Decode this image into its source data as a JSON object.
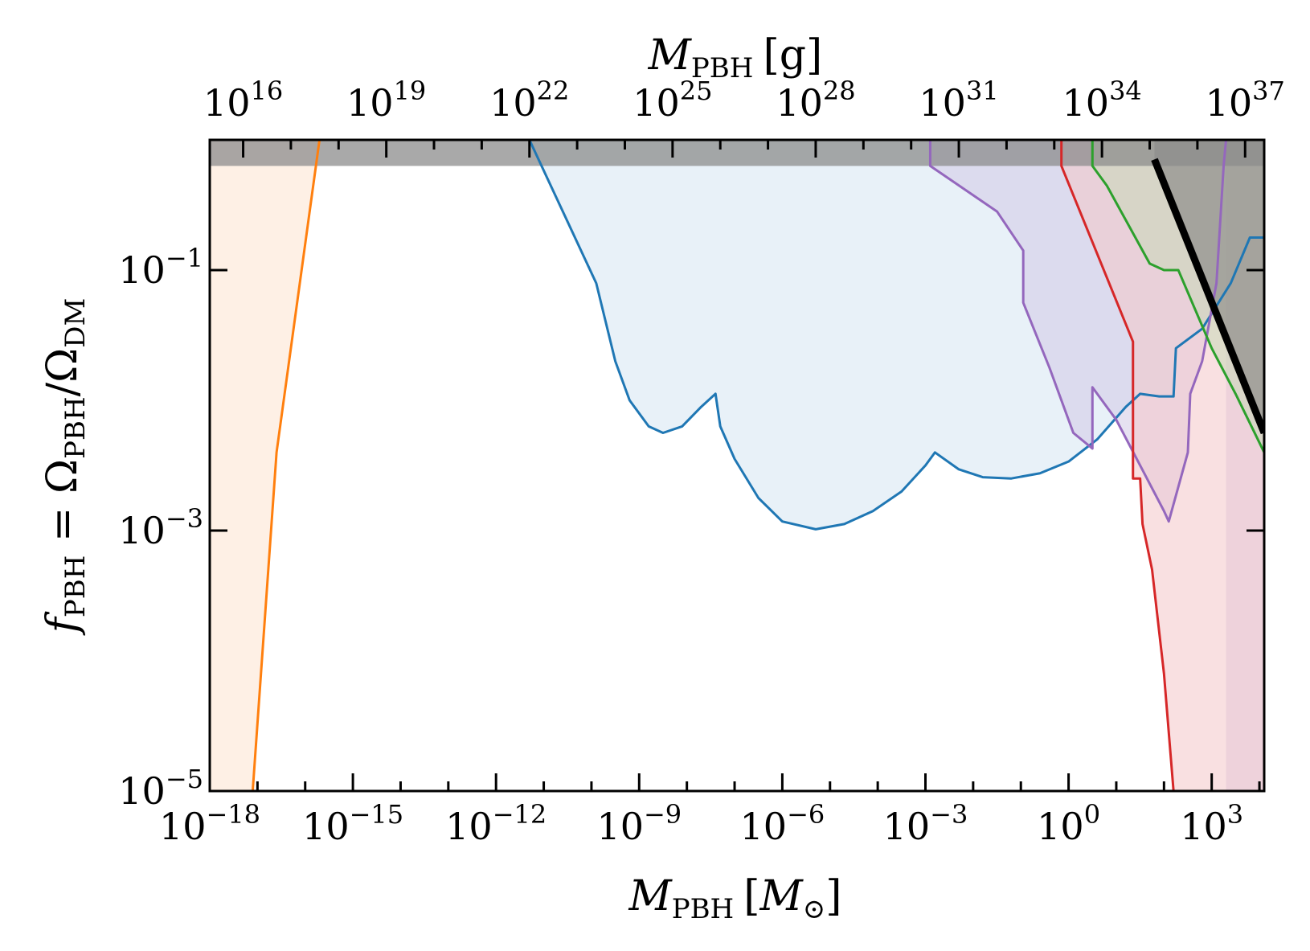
{
  "chart_data": {
    "type": "area",
    "x_scale": "log",
    "y_scale": "log",
    "xlim_exp": [
      -18,
      4.1
    ],
    "ylim_exp": [
      -5,
      0
    ],
    "top_axis_offset_exp": 33.3,
    "xlabel": {
      "main": "M",
      "sub": "PBH",
      "unit_open": "[",
      "unit": "M",
      "unit_sub": "⊙",
      "unit_close": "]"
    },
    "top_xlabel": {
      "main": "M",
      "sub": "PBH",
      "unit": "[g]"
    },
    "ylabel": {
      "f": "f",
      "f_sub": "PBH",
      "eq": " = Ω",
      "num_sub": "PBH",
      "slash": "/Ω",
      "den_sub": "DM"
    },
    "x_ticks": [
      {
        "base": "10",
        "exp": "−18",
        "value": -18
      },
      {
        "base": "10",
        "exp": "−15",
        "value": -15
      },
      {
        "base": "10",
        "exp": "−12",
        "value": -12
      },
      {
        "base": "10",
        "exp": "−9",
        "value": -9
      },
      {
        "base": "10",
        "exp": "−6",
        "value": -6
      },
      {
        "base": "10",
        "exp": "−3",
        "value": -3
      },
      {
        "base": "10",
        "exp": "0",
        "value": 0
      },
      {
        "base": "10",
        "exp": "3",
        "value": 3
      }
    ],
    "top_ticks": [
      {
        "base": "10",
        "exp": "16",
        "value": 16
      },
      {
        "base": "10",
        "exp": "19",
        "value": 19
      },
      {
        "base": "10",
        "exp": "22",
        "value": 22
      },
      {
        "base": "10",
        "exp": "25",
        "value": 25
      },
      {
        "base": "10",
        "exp": "28",
        "value": 28
      },
      {
        "base": "10",
        "exp": "31",
        "value": 31
      },
      {
        "base": "10",
        "exp": "34",
        "value": 34
      },
      {
        "base": "10",
        "exp": "37",
        "value": 37
      }
    ],
    "y_ticks": [
      {
        "base": "10",
        "exp": "−1",
        "value": -1
      },
      {
        "base": "10",
        "exp": "−3",
        "value": -3
      },
      {
        "base": "10",
        "exp": "−5",
        "value": -5
      }
    ],
    "grey_band": {
      "y_from_exp": -0.2,
      "y_to_exp": 0,
      "color": "#8c8c8c",
      "opacity": 0.75
    },
    "series": [
      {
        "color": "#ff7f0e",
        "fill": "#fde3cf",
        "side": "left",
        "points": [
          [
            -17.1,
            -5
          ],
          [
            -16.6,
            -2.4
          ],
          [
            -15.7,
            0
          ]
        ]
      },
      {
        "color": "#1f77b4",
        "fill": "#d6e5f2",
        "side": "above",
        "points": [
          [
            -11.3,
            0
          ],
          [
            -9.9,
            -1.1
          ],
          [
            -9.5,
            -1.7
          ],
          [
            -9.2,
            -2.0
          ],
          [
            -8.8,
            -2.2
          ],
          [
            -8.5,
            -2.25
          ],
          [
            -8.1,
            -2.2
          ],
          [
            -7.7,
            -2.05
          ],
          [
            -7.4,
            -1.95
          ],
          [
            -7.3,
            -2.2
          ],
          [
            -7.0,
            -2.45
          ],
          [
            -6.5,
            -2.75
          ],
          [
            -6.0,
            -2.93
          ],
          [
            -5.3,
            -2.99
          ],
          [
            -4.7,
            -2.95
          ],
          [
            -4.1,
            -2.85
          ],
          [
            -3.5,
            -2.7
          ],
          [
            -3.0,
            -2.5
          ],
          [
            -2.8,
            -2.4
          ],
          [
            -2.3,
            -2.53
          ],
          [
            -1.8,
            -2.59
          ],
          [
            -1.2,
            -2.6
          ],
          [
            -0.6,
            -2.56
          ],
          [
            0.0,
            -2.47
          ],
          [
            0.6,
            -2.3
          ],
          [
            1.2,
            -2.05
          ],
          [
            1.5,
            -1.95
          ],
          [
            1.9,
            -1.97
          ],
          [
            2.2,
            -1.97
          ],
          [
            2.25,
            -1.6
          ],
          [
            2.8,
            -1.45
          ],
          [
            3.4,
            -1.1
          ],
          [
            3.8,
            -0.75
          ],
          [
            4.1,
            -0.75
          ]
        ]
      },
      {
        "color": "#9467bd",
        "fill": "#d2c8e6",
        "side": "above",
        "points": [
          [
            -2.9,
            0
          ],
          [
            -2.9,
            -0.2
          ],
          [
            -1.5,
            -0.55
          ],
          [
            -0.95,
            -0.85
          ],
          [
            -0.95,
            -1.25
          ],
          [
            -0.4,
            -1.75
          ],
          [
            0.1,
            -2.25
          ],
          [
            0.5,
            -2.37
          ],
          [
            0.5,
            -1.9
          ],
          [
            1.0,
            -2.15
          ],
          [
            2.0,
            -2.85
          ],
          [
            2.1,
            -2.93
          ],
          [
            2.5,
            -2.4
          ],
          [
            2.55,
            -1.95
          ],
          [
            2.8,
            -1.7
          ],
          [
            3.1,
            -1.1
          ],
          [
            3.25,
            -0.2
          ],
          [
            3.3,
            0
          ]
        ]
      },
      {
        "color": "#d62728",
        "fill": "#f4c6c8",
        "side": "above",
        "points": [
          [
            -0.15,
            0
          ],
          [
            -0.15,
            -0.2
          ],
          [
            1.35,
            -1.55
          ],
          [
            1.35,
            -2.6
          ],
          [
            1.5,
            -2.6
          ],
          [
            1.55,
            -2.95
          ],
          [
            1.75,
            -3.3
          ],
          [
            2.0,
            -4.1
          ],
          [
            2.2,
            -5
          ]
        ]
      },
      {
        "color": "#2ca02c",
        "fill": "#c8d8b8",
        "side": "above",
        "points": [
          [
            0.5,
            0
          ],
          [
            0.5,
            -0.2
          ],
          [
            0.8,
            -0.35
          ],
          [
            1.7,
            -0.95
          ],
          [
            2.0,
            -1.0
          ],
          [
            2.3,
            -1.0
          ],
          [
            3.0,
            -1.6
          ],
          [
            3.5,
            -1.95
          ],
          [
            4.1,
            -2.4
          ]
        ]
      },
      {
        "color": "#000000",
        "fill": "#7a7a7a",
        "side": "above",
        "width": 9,
        "points": [
          [
            1.8,
            -0.15
          ],
          [
            4.1,
            -2.25
          ]
        ]
      }
    ]
  }
}
